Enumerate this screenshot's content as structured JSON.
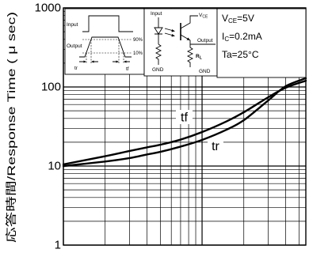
{
  "chart_data": {
    "type": "line",
    "ylabel": "応答時間/Response Time ( μ sec)",
    "xscale": "log",
    "yscale": "log",
    "xlim": [
      1,
      56
    ],
    "ylim": [
      1,
      1000
    ],
    "yticks": [
      1,
      10,
      100,
      1000
    ],
    "grid": true,
    "series": [
      {
        "name": "tf",
        "x": [
          1,
          2,
          3,
          4,
          5,
          7,
          10,
          15,
          20,
          30,
          40,
          56
        ],
        "y": [
          10.5,
          13.3,
          15.5,
          17.2,
          18.6,
          21.6,
          26.9,
          36.7,
          47.9,
          74.1,
          97.7,
          120
        ]
      },
      {
        "name": "tr",
        "x": [
          1,
          2,
          3,
          4,
          5,
          7,
          10,
          15,
          20,
          30,
          40,
          56
        ],
        "y": [
          10.0,
          11.4,
          12.6,
          14.0,
          15.1,
          17.6,
          21.4,
          28.8,
          38.0,
          67.6,
          102,
          129
        ]
      }
    ],
    "colors": {
      "line": "#000000",
      "grid": "#000000",
      "background": "#ffffff"
    }
  },
  "insets": {
    "waveform": {
      "input_label": "Input",
      "output_label": "Output",
      "level_high": "90%",
      "level_low": "10%",
      "rise_label": "tr",
      "fall_label": "tf"
    },
    "circuit": {
      "input_label": "Input",
      "vce_main": "V",
      "vce_sub": "CE",
      "output_label": "Output",
      "rl_main": "R",
      "rl_sub": "L",
      "gnd_left": "GND",
      "gnd_right": "GND"
    },
    "conditions": [
      {
        "main": "V",
        "sub": "CE",
        "rest": "=5V"
      },
      {
        "main": "I",
        "sub": "C",
        "rest": "=0.2mA"
      },
      {
        "main": "Ta=25°C"
      }
    ]
  }
}
